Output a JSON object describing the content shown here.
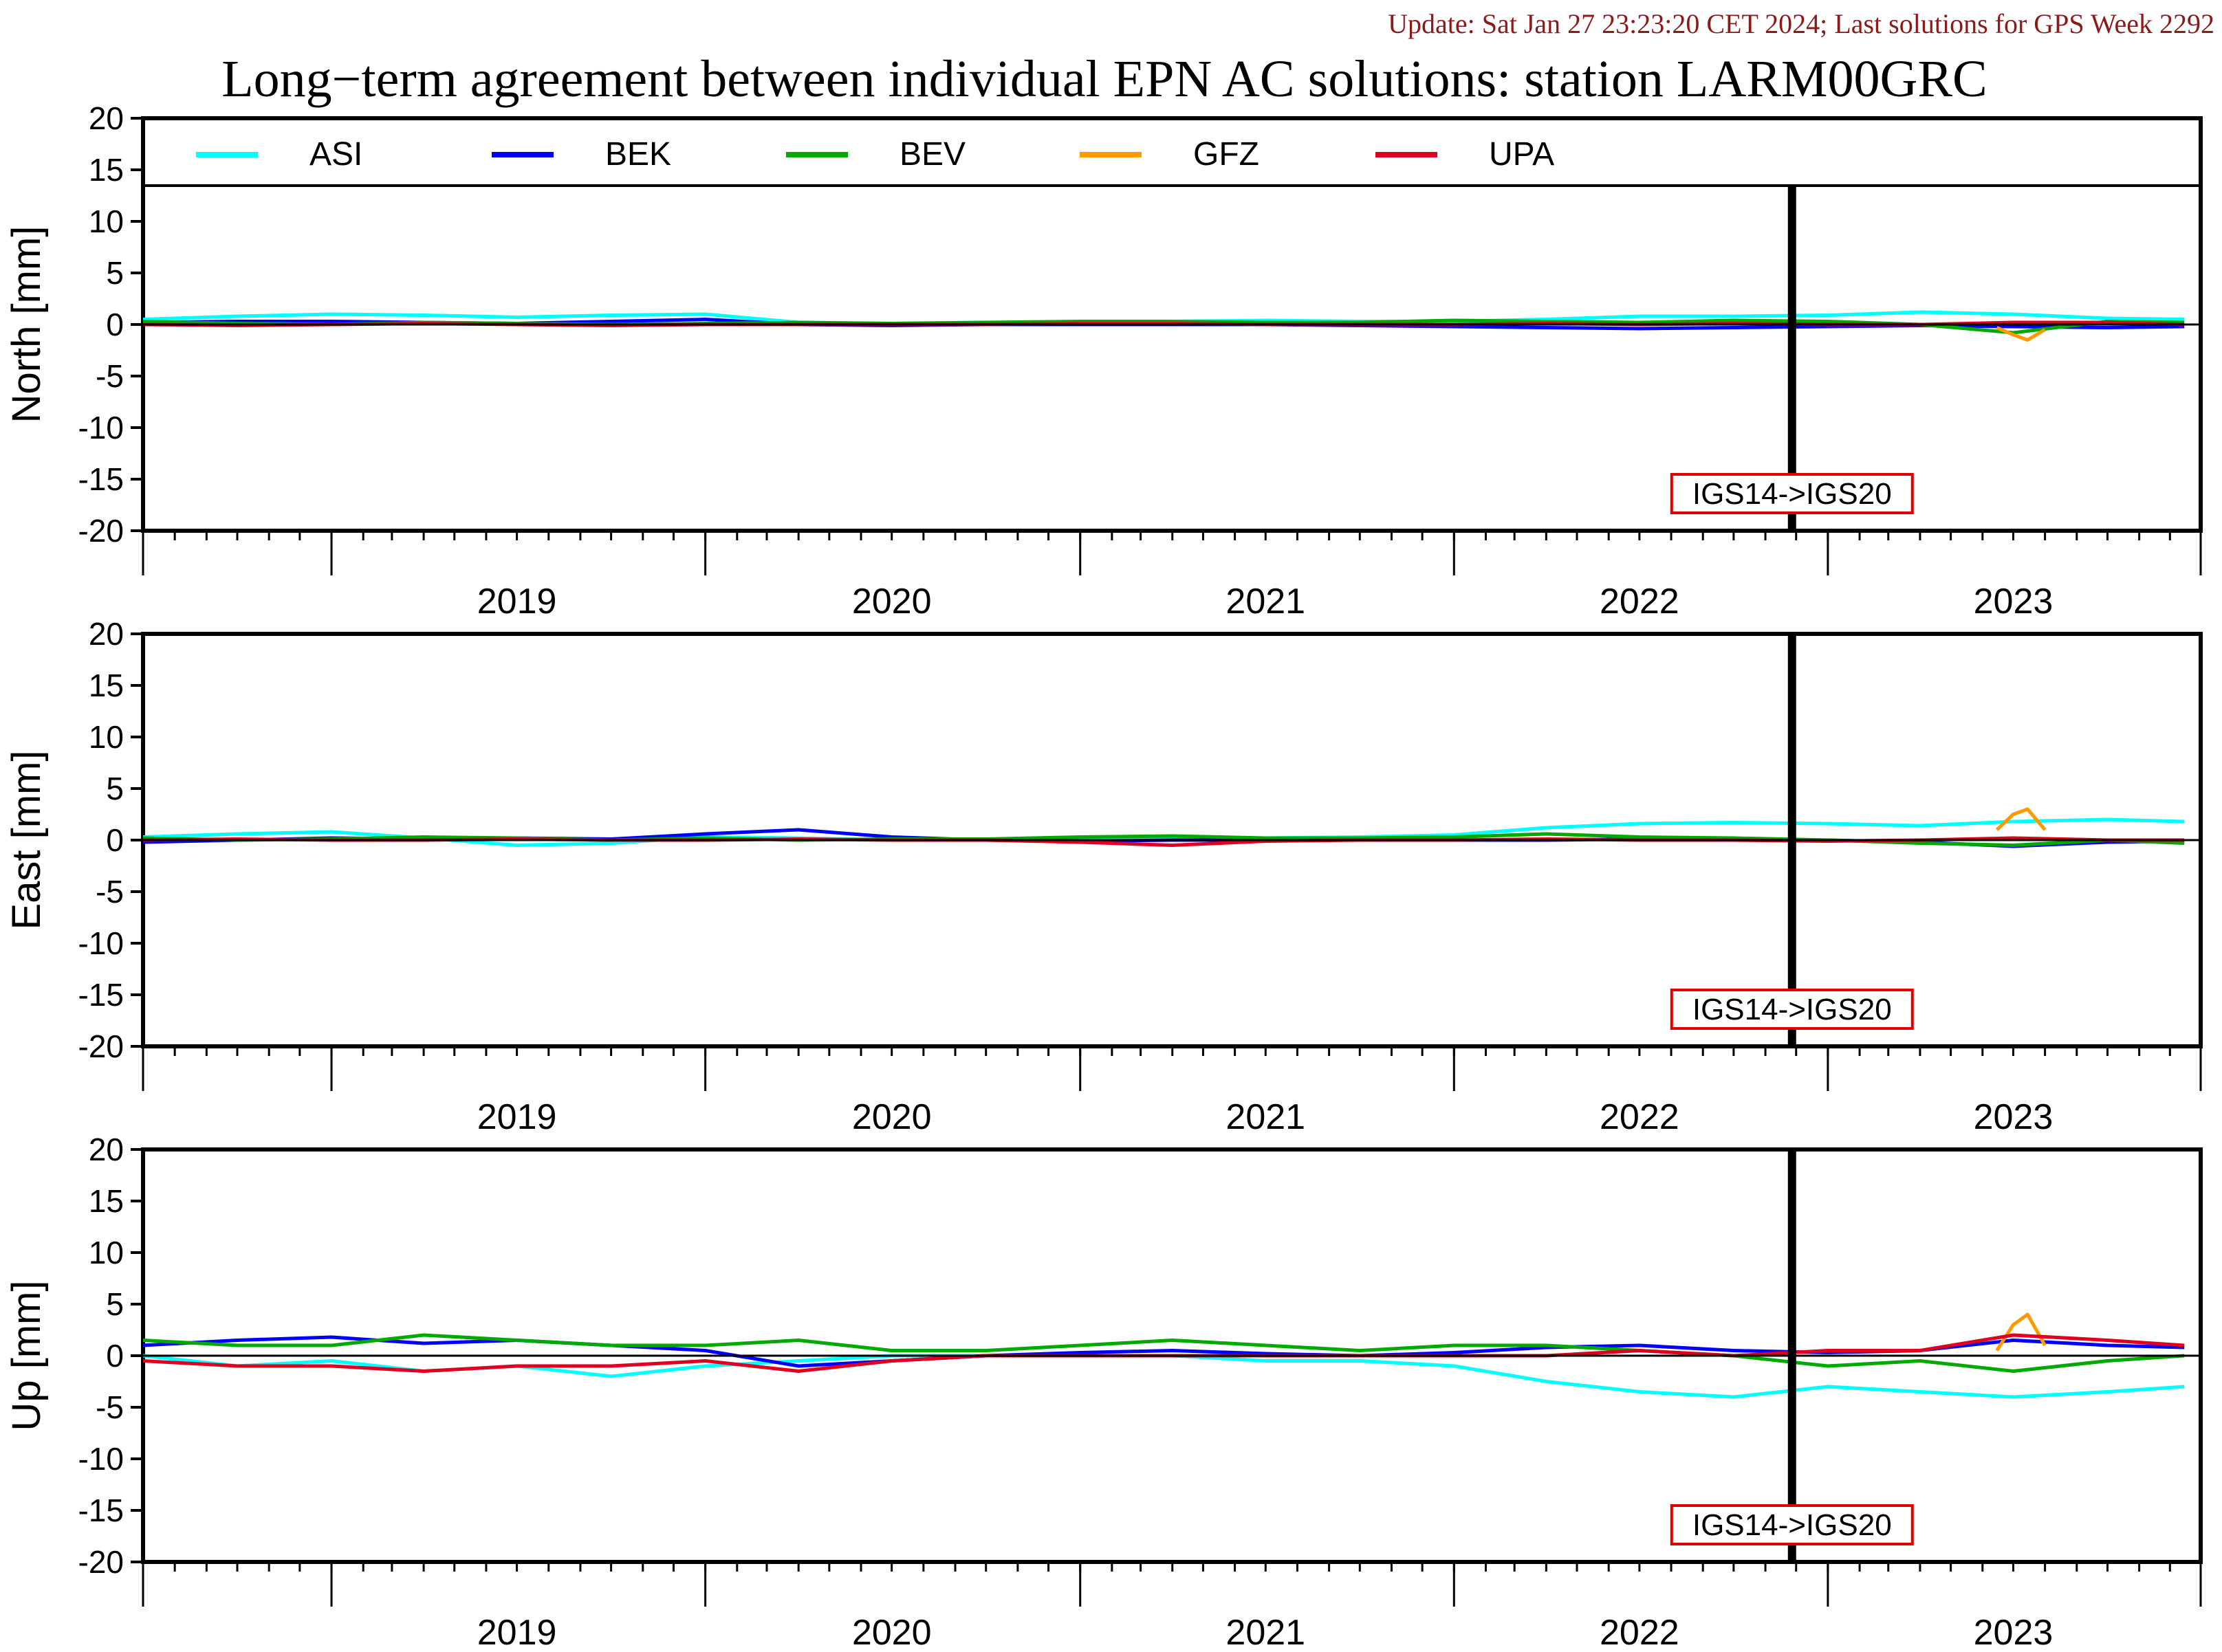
{
  "header": {
    "update_text": "Update: Sat Jan 27 23:23:20 CET 2024; Last solutions for GPS Week 2292",
    "title": "Long−term agreement between individual EPN AC solutions: station LARM00GRC"
  },
  "colors": {
    "header_text": "#8b1a1a",
    "marker_box": "#e00000",
    "axis": "#000000"
  },
  "chart_data": {
    "type": "line",
    "x_label_years": [
      "2019",
      "2020",
      "2021",
      "2022",
      "2023"
    ],
    "x_range": [
      "2018-07-01",
      "2023-12-31"
    ],
    "ylim": [
      -20,
      20
    ],
    "y_ticks": [
      -20,
      -15,
      -10,
      -5,
      0,
      5,
      10,
      15,
      20
    ],
    "grid": false,
    "legend_position": "top",
    "legend": [
      {
        "name": "ASI",
        "color": "#00ffff"
      },
      {
        "name": "BEK",
        "color": "#0000ff"
      },
      {
        "name": "BEV",
        "color": "#00aa00"
      },
      {
        "name": "GFZ",
        "color": "#ff9900"
      },
      {
        "name": "UPA",
        "color": "#e00020"
      }
    ],
    "reference_marker": {
      "date": "2022-11-27",
      "label": "IGS14->IGS20"
    },
    "panels": [
      {
        "ylabel": "North [mm]",
        "series": [
          {
            "name": "ASI",
            "x": [
              "2018-07-01",
              "2018-10-01",
              "2019-01-01",
              "2019-04-01",
              "2019-07-01",
              "2019-10-01",
              "2020-01-01",
              "2020-04-01",
              "2020-07-01",
              "2020-10-01",
              "2021-01-01",
              "2021-04-01",
              "2021-07-01",
              "2021-10-01",
              "2022-01-01",
              "2022-04-01",
              "2022-07-01",
              "2022-10-01",
              "2023-01-01",
              "2023-04-01",
              "2023-07-01",
              "2023-10-01",
              "2023-12-15"
            ],
            "y": [
              0.5,
              0.8,
              1.0,
              0.9,
              0.7,
              0.9,
              1.0,
              0.2,
              0.1,
              0.2,
              0.2,
              0.3,
              0.4,
              0.3,
              0.3,
              0.5,
              0.8,
              0.8,
              0.9,
              1.2,
              1.0,
              0.6,
              0.5
            ]
          },
          {
            "name": "BEK",
            "x": [
              "2018-07-01",
              "2018-10-01",
              "2019-01-01",
              "2019-04-01",
              "2019-07-01",
              "2019-10-01",
              "2020-01-01",
              "2020-04-01",
              "2020-07-01",
              "2020-10-01",
              "2021-01-01",
              "2021-04-01",
              "2021-07-01",
              "2021-10-01",
              "2022-01-01",
              "2022-04-01",
              "2022-07-01",
              "2022-10-01",
              "2023-01-01",
              "2023-04-01",
              "2023-07-01",
              "2023-10-01",
              "2023-12-15"
            ],
            "y": [
              0.2,
              0.3,
              0.3,
              0.2,
              0.1,
              0.3,
              0.5,
              0.0,
              -0.1,
              0.0,
              0.0,
              0.0,
              0.0,
              -0.1,
              -0.2,
              -0.3,
              -0.4,
              -0.3,
              -0.2,
              -0.1,
              -0.2,
              -0.3,
              -0.2
            ]
          },
          {
            "name": "BEV",
            "x": [
              "2018-07-01",
              "2018-10-01",
              "2019-01-01",
              "2019-04-01",
              "2019-07-01",
              "2019-10-01",
              "2020-01-01",
              "2020-04-01",
              "2020-07-01",
              "2020-10-01",
              "2021-01-01",
              "2021-04-01",
              "2021-07-01",
              "2021-10-01",
              "2022-01-01",
              "2022-04-01",
              "2022-07-01",
              "2022-10-01",
              "2023-01-01",
              "2023-04-01",
              "2023-07-01",
              "2023-10-01",
              "2023-12-15"
            ],
            "y": [
              0.3,
              0.1,
              0.0,
              0.2,
              0.1,
              0.0,
              0.1,
              0.2,
              0.1,
              0.2,
              0.3,
              0.3,
              0.2,
              0.2,
              0.4,
              0.3,
              0.2,
              0.4,
              0.3,
              0.0,
              -0.8,
              0.3,
              0.2
            ]
          },
          {
            "name": "GFZ",
            "x": [
              "2023-06-15",
              "2023-07-01",
              "2023-07-15",
              "2023-08-01"
            ],
            "y": [
              -0.3,
              -1.0,
              -1.5,
              -0.5
            ]
          },
          {
            "name": "UPA",
            "x": [
              "2018-07-01",
              "2018-10-01",
              "2019-01-01",
              "2019-04-01",
              "2019-07-01",
              "2019-10-01",
              "2020-01-01",
              "2020-04-01",
              "2020-07-01",
              "2020-10-01",
              "2021-01-01",
              "2021-04-01",
              "2021-07-01",
              "2021-10-01",
              "2022-01-01",
              "2022-04-01",
              "2022-07-01",
              "2022-10-01",
              "2023-01-01",
              "2023-04-01",
              "2023-07-01",
              "2023-10-01",
              "2023-12-15"
            ],
            "y": [
              0.0,
              -0.1,
              0.0,
              0.1,
              0.0,
              -0.1,
              0.0,
              0.0,
              0.0,
              0.0,
              0.1,
              0.1,
              0.0,
              0.0,
              0.0,
              0.1,
              0.0,
              0.1,
              0.0,
              0.0,
              0.2,
              0.2,
              0.0
            ]
          }
        ]
      },
      {
        "ylabel": "East [mm]",
        "series": [
          {
            "name": "ASI",
            "x": [
              "2018-07-01",
              "2018-10-01",
              "2019-01-01",
              "2019-04-01",
              "2019-07-01",
              "2019-10-01",
              "2020-01-01",
              "2020-04-01",
              "2020-07-01",
              "2020-10-01",
              "2021-01-01",
              "2021-04-01",
              "2021-07-01",
              "2021-10-01",
              "2022-01-01",
              "2022-04-01",
              "2022-07-01",
              "2022-10-01",
              "2023-01-01",
              "2023-04-01",
              "2023-07-01",
              "2023-10-01",
              "2023-12-15"
            ],
            "y": [
              0.3,
              0.6,
              0.8,
              0.2,
              -0.5,
              -0.3,
              0.3,
              0.2,
              0.0,
              0.1,
              0.1,
              0.2,
              0.2,
              0.3,
              0.5,
              1.2,
              1.6,
              1.7,
              1.6,
              1.4,
              1.8,
              2.0,
              1.8
            ]
          },
          {
            "name": "BEK",
            "x": [
              "2018-07-01",
              "2018-10-01",
              "2019-01-01",
              "2019-04-01",
              "2019-07-01",
              "2019-10-01",
              "2020-01-01",
              "2020-04-01",
              "2020-07-01",
              "2020-10-01",
              "2021-01-01",
              "2021-04-01",
              "2021-07-01",
              "2021-10-01",
              "2022-01-01",
              "2022-04-01",
              "2022-07-01",
              "2022-10-01",
              "2023-01-01",
              "2023-04-01",
              "2023-07-01",
              "2023-10-01",
              "2023-12-15"
            ],
            "y": [
              -0.2,
              0.0,
              0.2,
              0.1,
              0.2,
              0.1,
              0.6,
              1.0,
              0.3,
              0.0,
              -0.1,
              0.0,
              0.0,
              0.0,
              0.0,
              0.0,
              0.1,
              0.0,
              0.0,
              -0.2,
              -0.6,
              -0.2,
              -0.1
            ]
          },
          {
            "name": "BEV",
            "x": [
              "2018-07-01",
              "2018-10-01",
              "2019-01-01",
              "2019-04-01",
              "2019-07-01",
              "2019-10-01",
              "2020-01-01",
              "2020-04-01",
              "2020-07-01",
              "2020-10-01",
              "2021-01-01",
              "2021-04-01",
              "2021-07-01",
              "2021-10-01",
              "2022-01-01",
              "2022-04-01",
              "2022-07-01",
              "2022-10-01",
              "2023-01-01",
              "2023-04-01",
              "2023-07-01",
              "2023-10-01",
              "2023-12-15"
            ],
            "y": [
              0.2,
              0.0,
              0.1,
              0.3,
              0.2,
              0.0,
              0.2,
              0.0,
              0.1,
              0.1,
              0.3,
              0.4,
              0.2,
              0.2,
              0.3,
              0.6,
              0.3,
              0.2,
              0.0,
              -0.3,
              -0.5,
              0.0,
              -0.3
            ]
          },
          {
            "name": "GFZ",
            "x": [
              "2023-06-15",
              "2023-07-01",
              "2023-07-15",
              "2023-08-01"
            ],
            "y": [
              1.0,
              2.5,
              3.0,
              1.0
            ]
          },
          {
            "name": "UPA",
            "x": [
              "2018-07-01",
              "2018-10-01",
              "2019-01-01",
              "2019-04-01",
              "2019-07-01",
              "2019-10-01",
              "2020-01-01",
              "2020-04-01",
              "2020-07-01",
              "2020-10-01",
              "2021-01-01",
              "2021-04-01",
              "2021-07-01",
              "2021-10-01",
              "2022-01-01",
              "2022-04-01",
              "2022-07-01",
              "2022-10-01",
              "2023-01-01",
              "2023-04-01",
              "2023-07-01",
              "2023-10-01",
              "2023-12-15"
            ],
            "y": [
              0.0,
              0.1,
              0.0,
              0.0,
              0.1,
              0.0,
              0.0,
              0.1,
              0.0,
              0.0,
              -0.2,
              -0.5,
              -0.1,
              0.0,
              0.0,
              0.1,
              0.0,
              0.0,
              -0.1,
              0.0,
              0.2,
              0.0,
              0.0
            ]
          }
        ]
      },
      {
        "ylabel": "Up [mm]",
        "series": [
          {
            "name": "ASI",
            "x": [
              "2018-07-01",
              "2018-10-01",
              "2019-01-01",
              "2019-04-01",
              "2019-07-01",
              "2019-10-01",
              "2020-01-01",
              "2020-04-01",
              "2020-07-01",
              "2020-10-01",
              "2021-01-01",
              "2021-04-01",
              "2021-07-01",
              "2021-10-01",
              "2022-01-01",
              "2022-04-01",
              "2022-07-01",
              "2022-10-01",
              "2023-01-01",
              "2023-04-01",
              "2023-07-01",
              "2023-10-01",
              "2023-12-15"
            ],
            "y": [
              0.0,
              -1.0,
              -0.5,
              -1.5,
              -1.0,
              -2.0,
              -1.0,
              -0.5,
              0.0,
              0.0,
              0.0,
              0.0,
              -0.5,
              -0.5,
              -1.0,
              -2.5,
              -3.5,
              -4.0,
              -3.0,
              -3.5,
              -4.0,
              -3.5,
              -3.0
            ]
          },
          {
            "name": "BEK",
            "x": [
              "2018-07-01",
              "2018-10-01",
              "2019-01-01",
              "2019-04-01",
              "2019-07-01",
              "2019-10-01",
              "2020-01-01",
              "2020-04-01",
              "2020-07-01",
              "2020-10-01",
              "2021-01-01",
              "2021-04-01",
              "2021-07-01",
              "2021-10-01",
              "2022-01-01",
              "2022-04-01",
              "2022-07-01",
              "2022-10-01",
              "2023-01-01",
              "2023-04-01",
              "2023-07-01",
              "2023-10-01",
              "2023-12-15"
            ],
            "y": [
              1.0,
              1.5,
              1.8,
              1.2,
              1.5,
              1.0,
              0.5,
              -1.0,
              -0.5,
              0.0,
              0.3,
              0.5,
              0.2,
              0.0,
              0.3,
              0.8,
              1.0,
              0.5,
              0.3,
              0.5,
              1.5,
              1.0,
              0.8
            ]
          },
          {
            "name": "BEV",
            "x": [
              "2018-07-01",
              "2018-10-01",
              "2019-01-01",
              "2019-04-01",
              "2019-07-01",
              "2019-10-01",
              "2020-01-01",
              "2020-04-01",
              "2020-07-01",
              "2020-10-01",
              "2021-01-01",
              "2021-04-01",
              "2021-07-01",
              "2021-10-01",
              "2022-01-01",
              "2022-04-01",
              "2022-07-01",
              "2022-10-01",
              "2023-01-01",
              "2023-04-01",
              "2023-07-01",
              "2023-10-01",
              "2023-12-15"
            ],
            "y": [
              1.5,
              1.0,
              1.0,
              2.0,
              1.5,
              1.0,
              1.0,
              1.5,
              0.5,
              0.5,
              1.0,
              1.5,
              1.0,
              0.5,
              1.0,
              1.0,
              0.5,
              0.0,
              -1.0,
              -0.5,
              -1.5,
              -0.5,
              0.0
            ]
          },
          {
            "name": "GFZ",
            "x": [
              "2023-06-15",
              "2023-07-01",
              "2023-07-15",
              "2023-08-01"
            ],
            "y": [
              0.5,
              3.0,
              4.0,
              1.0
            ]
          },
          {
            "name": "UPA",
            "x": [
              "2018-07-01",
              "2018-10-01",
              "2019-01-01",
              "2019-04-01",
              "2019-07-01",
              "2019-10-01",
              "2020-01-01",
              "2020-04-01",
              "2020-07-01",
              "2020-10-01",
              "2021-01-01",
              "2021-04-01",
              "2021-07-01",
              "2021-10-01",
              "2022-01-01",
              "2022-04-01",
              "2022-07-01",
              "2022-10-01",
              "2023-01-01",
              "2023-04-01",
              "2023-07-01",
              "2023-10-01",
              "2023-12-15"
            ],
            "y": [
              -0.5,
              -1.0,
              -1.0,
              -1.5,
              -1.0,
              -1.0,
              -0.5,
              -1.5,
              -0.5,
              0.0,
              0.0,
              0.0,
              0.0,
              0.0,
              0.0,
              0.0,
              0.5,
              0.0,
              0.5,
              0.5,
              2.0,
              1.5,
              1.0
            ]
          }
        ]
      }
    ]
  }
}
